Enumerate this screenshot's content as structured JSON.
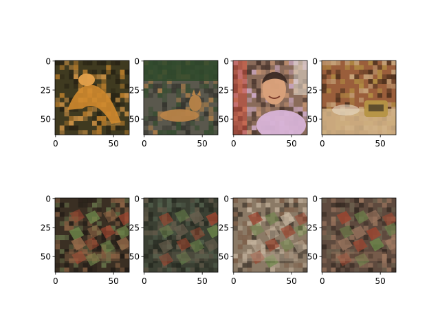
{
  "figure": {
    "rows": 2,
    "cols": 4,
    "panels": [
      {
        "row": 0,
        "col": 0,
        "content": "orange-animal-on-moss",
        "colors": {
          "bg": "#3f3a20",
          "accent": "#d08a2e",
          "accent2": "#e6a24c",
          "dark": "#241f12"
        }
      },
      {
        "row": 0,
        "col": 1,
        "content": "dog-lying-on-ground",
        "colors": {
          "bg": "#5a584d",
          "accent": "#b88348",
          "accent2": "#2f4a2b",
          "dark": "#2a2a25"
        }
      },
      {
        "row": 0,
        "col": 2,
        "content": "young-man-smiling-street",
        "colors": {
          "bg": "#8a6b5a",
          "accent": "#d8b4d8",
          "accent2": "#d9a17a",
          "dark": "#3b2a24"
        }
      },
      {
        "row": 0,
        "col": 3,
        "content": "blurry-object-tabletop",
        "colors": {
          "bg": "#9a5e3b",
          "accent": "#d2b58a",
          "accent2": "#b59444",
          "dark": "#3c2616"
        }
      },
      {
        "row": 1,
        "col": 0,
        "content": "generated-texture",
        "colors": {
          "bg": "#3a2f23",
          "accent": "#9b6d4b",
          "accent2": "#6b7a4e",
          "dark": "#1f1a15"
        }
      },
      {
        "row": 1,
        "col": 1,
        "content": "generated-texture",
        "colors": {
          "bg": "#3b4033",
          "accent": "#6a5f4e",
          "accent2": "#556450",
          "dark": "#23261e"
        }
      },
      {
        "row": 1,
        "col": 2,
        "content": "generated-texture",
        "colors": {
          "bg": "#8b7a66",
          "accent": "#c9b8a2",
          "accent2": "#7a5a44",
          "dark": "#3a3128"
        }
      },
      {
        "row": 1,
        "col": 3,
        "content": "generated-texture",
        "colors": {
          "bg": "#5e4a3e",
          "accent": "#a27b62",
          "accent2": "#6e6450",
          "dark": "#2e241d"
        }
      }
    ],
    "axis": {
      "x_ticks": [
        0,
        50
      ],
      "y_ticks": [
        0,
        25,
        50
      ],
      "x_ticklabels": [
        "0",
        "50"
      ],
      "y_ticklabels": [
        "0",
        "25",
        "50"
      ],
      "data_extent": 64
    }
  }
}
